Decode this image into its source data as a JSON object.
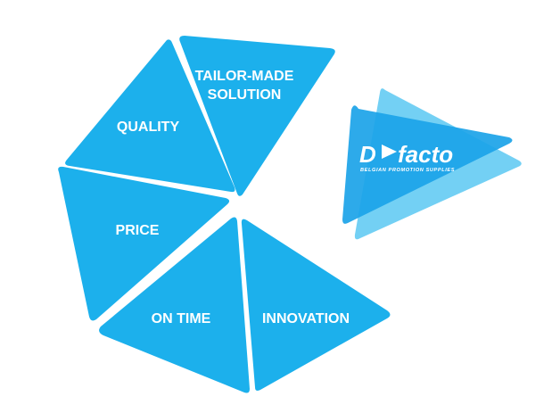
{
  "colors": {
    "segment_fill": "#1CB0EC",
    "logo_back": "#5BC8F2",
    "logo_front": "#1BA3E8",
    "text": "#ffffff"
  },
  "segments": [
    {
      "id": "quality",
      "lines": [
        "QUALITY"
      ]
    },
    {
      "id": "tailor_made_solution",
      "lines": [
        "TAILOR-MADE",
        "SOLUTION"
      ]
    },
    {
      "id": "price",
      "lines": [
        "PRICE"
      ]
    },
    {
      "id": "on_time",
      "lines": [
        "ON TIME"
      ]
    },
    {
      "id": "innovation",
      "lines": [
        "INNOVATION"
      ]
    }
  ],
  "logo": {
    "brand_prefix": "D",
    "brand_suffix": "facto",
    "tagline": "BELGIAN PROMOTION SUPPLIES",
    "icon": "play-triangle-icon"
  }
}
